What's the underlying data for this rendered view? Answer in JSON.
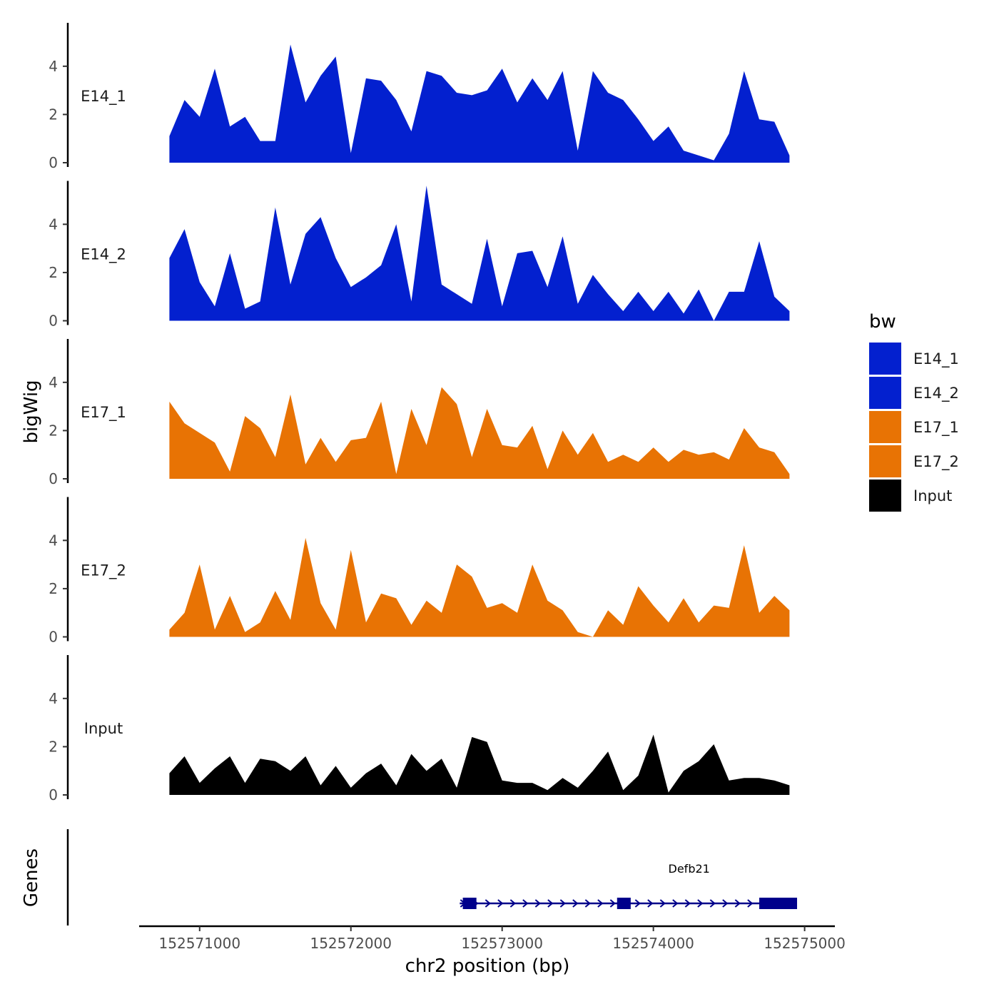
{
  "chart_data": {
    "type": "area",
    "chromosome": "chr2",
    "xlabel": "chr2 position (bp)",
    "ylabel": "bigWig",
    "genes_label": "Genes",
    "xlim": [
      152570600,
      152575200
    ],
    "ylim": [
      0,
      5.8
    ],
    "x_ticks": [
      152571000,
      152572000,
      152573000,
      152574000,
      152575000
    ],
    "x_tick_labels": [
      "152571000",
      "152572000",
      "152573000",
      "152574000",
      "152575000"
    ],
    "y_ticks": [
      0,
      2,
      4
    ],
    "y_tick_labels": [
      "0",
      "2",
      "4"
    ],
    "legend": {
      "title": "bw",
      "entries": [
        {
          "label": "E14_1",
          "color": "#0320CF"
        },
        {
          "label": "E14_2",
          "color": "#0320CF"
        },
        {
          "label": "E17_1",
          "color": "#E87304"
        },
        {
          "label": "E17_2",
          "color": "#E87304"
        },
        {
          "label": "Input",
          "color": "#000000"
        }
      ]
    },
    "x": [
      152570800,
      152570900,
      152571000,
      152571100,
      152571200,
      152571300,
      152571400,
      152571500,
      152571600,
      152571700,
      152571800,
      152571900,
      152572000,
      152572100,
      152572200,
      152572300,
      152572400,
      152572500,
      152572600,
      152572700,
      152572800,
      152572900,
      152573000,
      152573100,
      152573200,
      152573300,
      152573400,
      152573500,
      152573600,
      152573700,
      152573800,
      152573900,
      152574000,
      152574100,
      152574200,
      152574300,
      152574400,
      152574500,
      152574600,
      152574700,
      152574800,
      152574900
    ],
    "series": [
      {
        "name": "E14_1",
        "color": "#0320CF",
        "values": [
          1.1,
          2.6,
          1.9,
          3.9,
          1.5,
          1.9,
          0.9,
          0.9,
          4.9,
          2.5,
          3.6,
          4.4,
          0.4,
          3.5,
          3.4,
          2.6,
          1.3,
          3.8,
          3.6,
          2.9,
          2.8,
          3.0,
          3.9,
          2.5,
          3.5,
          2.6,
          3.8,
          0.5,
          3.8,
          2.9,
          2.6,
          1.8,
          0.9,
          1.5,
          0.5,
          0.3,
          0.1,
          1.2,
          3.8,
          1.8,
          1.7,
          0.3
        ]
      },
      {
        "name": "E14_2",
        "color": "#0320CF",
        "values": [
          2.6,
          3.8,
          1.6,
          0.6,
          2.8,
          0.5,
          0.8,
          4.7,
          1.5,
          3.6,
          4.3,
          2.6,
          1.4,
          1.8,
          2.3,
          4.0,
          0.8,
          5.6,
          1.5,
          1.1,
          0.7,
          3.4,
          0.6,
          2.8,
          2.9,
          1.4,
          3.5,
          0.7,
          1.9,
          1.1,
          0.4,
          1.2,
          0.4,
          1.2,
          0.3,
          1.3,
          0.0,
          1.2,
          1.2,
          3.3,
          1.0,
          0.4
        ]
      },
      {
        "name": "E17_1",
        "color": "#E87304",
        "values": [
          3.2,
          2.3,
          1.9,
          1.5,
          0.3,
          2.6,
          2.1,
          0.9,
          3.5,
          0.6,
          1.7,
          0.7,
          1.6,
          1.7,
          3.2,
          0.2,
          2.9,
          1.4,
          3.8,
          3.1,
          0.9,
          2.9,
          1.4,
          1.3,
          2.2,
          0.4,
          2.0,
          1.0,
          1.9,
          0.7,
          1.0,
          0.7,
          1.3,
          0.7,
          1.2,
          1.0,
          1.1,
          0.8,
          2.1,
          1.3,
          1.1,
          0.2
        ]
      },
      {
        "name": "E17_2",
        "color": "#E87304",
        "values": [
          0.3,
          1.0,
          3.0,
          0.3,
          1.7,
          0.2,
          0.6,
          1.9,
          0.7,
          4.1,
          1.4,
          0.3,
          3.6,
          0.6,
          1.8,
          1.6,
          0.5,
          1.5,
          1.0,
          3.0,
          2.5,
          1.2,
          1.4,
          1.0,
          3.0,
          1.5,
          1.1,
          0.2,
          0.0,
          1.1,
          0.5,
          2.1,
          1.3,
          0.6,
          1.6,
          0.6,
          1.3,
          1.2,
          3.8,
          1.0,
          1.7,
          1.1
        ]
      },
      {
        "name": "Input",
        "color": "#000000",
        "values": [
          0.9,
          1.6,
          0.5,
          1.1,
          1.6,
          0.5,
          1.5,
          1.4,
          1.0,
          1.6,
          0.4,
          1.2,
          0.3,
          0.9,
          1.3,
          0.4,
          1.7,
          1.0,
          1.5,
          0.3,
          2.4,
          2.2,
          0.6,
          0.5,
          0.5,
          0.2,
          0.7,
          0.3,
          1.0,
          1.8,
          0.2,
          0.8,
          2.5,
          0.1,
          1.0,
          1.4,
          2.1,
          0.6,
          0.7,
          0.7,
          0.6,
          0.4
        ]
      }
    ],
    "gene": {
      "name": "Defb21",
      "strand": "+",
      "start": 152572720,
      "end": 152574950,
      "exons": [
        [
          152572740,
          152572830
        ],
        [
          152573760,
          152573850
        ],
        [
          152574700,
          152574950
        ]
      ],
      "color": "#00008B"
    }
  }
}
